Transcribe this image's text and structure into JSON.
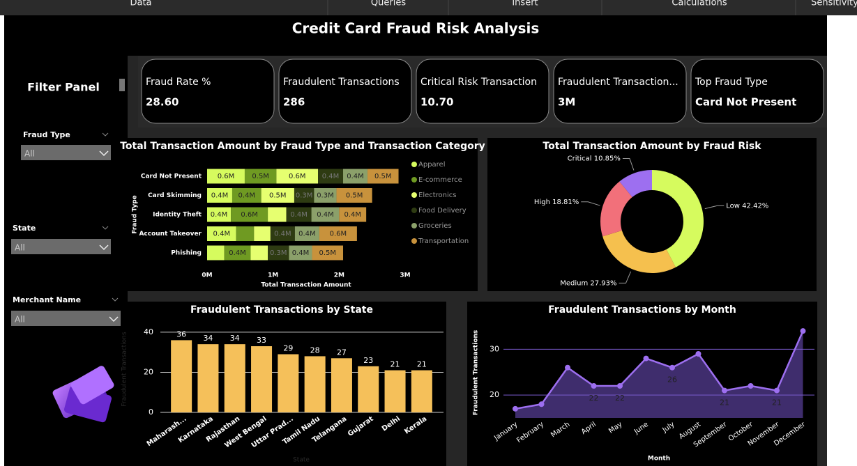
{
  "menu": [
    "Data",
    "Queries",
    "Insert",
    "Calculations",
    "Sensitivity"
  ],
  "title": "Credit Card Fraud Risk Analysis",
  "filter_panel": {
    "title": "Filter Panel",
    "filters": [
      {
        "label": "Fraud Type",
        "value": "All"
      },
      {
        "label": "State",
        "value": "All"
      },
      {
        "label": "Merchant Name",
        "value": "All"
      }
    ]
  },
  "kpis": [
    {
      "label": "Fraud Rate %",
      "value": "28.60"
    },
    {
      "label": "Fraudulent Transactions",
      "value": "286"
    },
    {
      "label": "Critical Risk Transaction",
      "value": "10.70"
    },
    {
      "label": "Fraudulent Transaction...",
      "value": "3M"
    },
    {
      "label": "Top Fraud Type",
      "value": "Card Not Present"
    }
  ],
  "chart_data": [
    {
      "type": "bar",
      "orientation": "horizontal",
      "stacked": true,
      "title": "Total Transaction Amount by Fraud Type and Transaction Category",
      "x_label": "Total Transaction Amount",
      "y_label": "Fraud Type",
      "categories": [
        "Card Not Present",
        "Card Skimming",
        "Identity Theft",
        "Account Takeover",
        "Phishing"
      ],
      "series": [
        {
          "name": "Apparel",
          "color": "#d6fb5e",
          "values": [
            570000,
            380000,
            360000,
            440000,
            260000
          ],
          "value_labels": [
            "0.6M",
            "0.4M",
            "0.4M",
            "0.4M",
            null
          ]
        },
        {
          "name": "E-commerce",
          "color": "#6f9a22",
          "values": [
            480000,
            440000,
            560000,
            270000,
            400000
          ],
          "value_labels": [
            "0.5M",
            "0.4M",
            "0.6M",
            null,
            "0.4M"
          ]
        },
        {
          "name": "Electronics",
          "color": "#e6ff70",
          "values": [
            630000,
            500000,
            280000,
            250000,
            260000
          ],
          "value_labels": [
            "0.6M",
            "0.5M",
            null,
            null,
            null
          ]
        },
        {
          "name": "Food Delivery",
          "color": "#2e3b12",
          "values": [
            380000,
            300000,
            380000,
            370000,
            320000
          ],
          "value_labels": [
            "0.4M",
            "0.3M",
            "0.4M",
            "0.4M",
            "0.3M"
          ]
        },
        {
          "name": "Groceries",
          "color": "#8ba06a",
          "values": [
            370000,
            340000,
            420000,
            370000,
            350000
          ],
          "value_labels": [
            "0.4M",
            "0.3M",
            "0.4M",
            "0.4M",
            "0.4M"
          ]
        },
        {
          "name": "Transportation",
          "color": "#c8923c",
          "values": [
            470000,
            540000,
            410000,
            570000,
            470000
          ],
          "value_labels": [
            "0.5M",
            "0.5M",
            "0.4M",
            "0.6M",
            "0.5M"
          ]
        }
      ],
      "xlim": [
        0,
        3000000
      ],
      "xticks": [
        {
          "value": 0,
          "label": "0M"
        },
        {
          "value": 1000000,
          "label": "1M"
        },
        {
          "value": 2000000,
          "label": "2M"
        },
        {
          "value": 3000000,
          "label": "3M"
        }
      ],
      "legend": "right"
    },
    {
      "type": "pie",
      "hole": true,
      "title": "Total Transaction Amount by Fraud Risk",
      "categories": [
        "Low",
        "Medium",
        "High",
        "Critical"
      ],
      "values": [
        42.42,
        27.93,
        18.81,
        10.85
      ],
      "value_labels": [
        "42.42%",
        "27.93%",
        "18.81%",
        "10.85%"
      ],
      "colors": [
        "#d6fb5e",
        "#f5c04e",
        "#f2707a",
        "#9d6ff0"
      ]
    },
    {
      "type": "bar",
      "title": "Fraudulent Transactions by State",
      "x_label": "State",
      "y_label": "Fraudulent Transactions",
      "categories": [
        "Maharash...",
        "Karnataka",
        "Rajasthan",
        "West Bengal",
        "Uttar Prad...",
        "Tamil Nadu",
        "Telangana",
        "Gujarat",
        "Delhi",
        "Kerala"
      ],
      "values": [
        36,
        34,
        34,
        33,
        29,
        28,
        27,
        23,
        21,
        21
      ],
      "color": "#f5c05a",
      "ylim": [
        0,
        41
      ],
      "yticks": [
        0,
        20,
        40
      ],
      "grid": true
    },
    {
      "type": "line",
      "area": true,
      "title": "Fraudulent Transactions by Month",
      "x_label": "Month",
      "y_label": "Fraudulent Transactions",
      "categories": [
        "January",
        "February",
        "March",
        "April",
        "May",
        "June",
        "July",
        "August",
        "September",
        "October",
        "November",
        "December"
      ],
      "values": [
        17,
        18,
        26,
        22,
        22,
        28,
        26,
        29,
        21,
        22,
        21,
        34
      ],
      "value_labels": [
        null,
        null,
        null,
        "22",
        "22",
        null,
        "26",
        null,
        "21",
        null,
        "21",
        null
      ],
      "color": "#9d6ff0",
      "ylim": [
        15,
        36
      ],
      "yticks": [
        20,
        30
      ],
      "grid": true
    }
  ]
}
